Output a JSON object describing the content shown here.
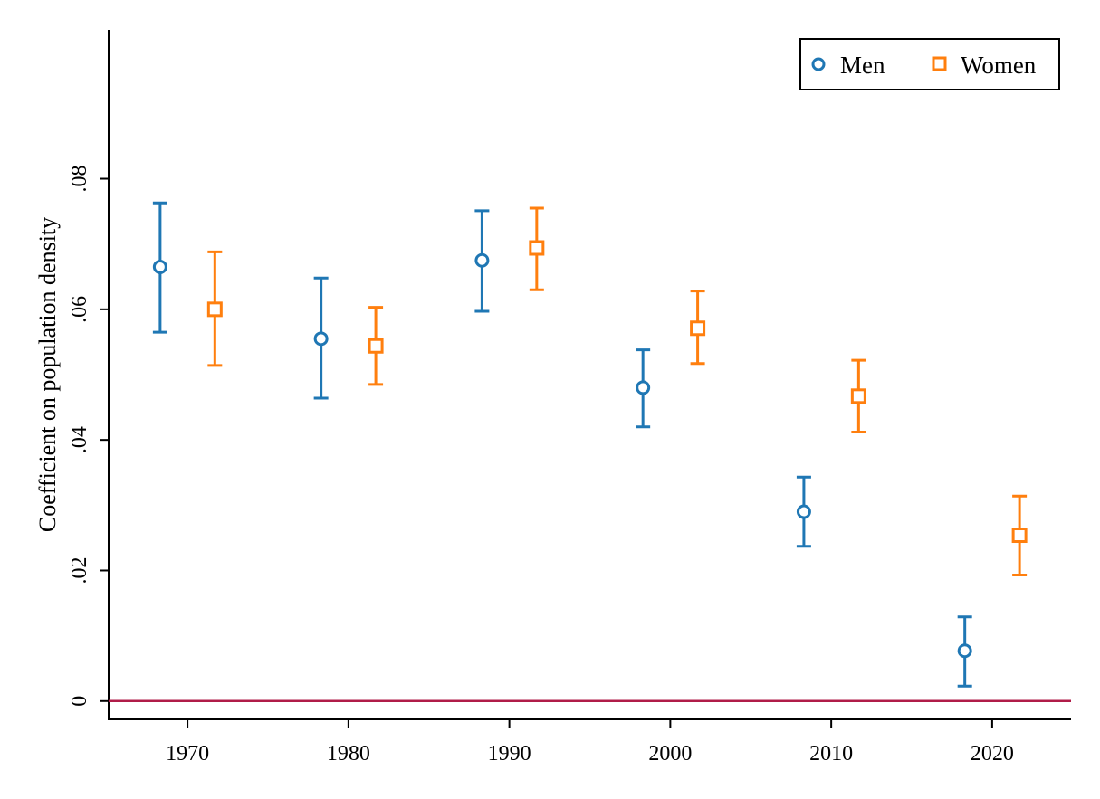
{
  "chart_data": {
    "type": "scatter",
    "subtype": "point-estimates-with-confidence-intervals",
    "ylabel": "Coefficient on population density",
    "xlabel": "",
    "x_ticks": [
      1970,
      1980,
      1990,
      2000,
      2010,
      2020
    ],
    "x_tick_labels": [
      "1970",
      "1980",
      "1990",
      "2000",
      "2010",
      "2020"
    ],
    "y_ticks": [
      0,
      0.02,
      0.04,
      0.06,
      0.08
    ],
    "y_tick_labels": [
      "0",
      ".02",
      ".04",
      ".06",
      ".08"
    ],
    "xlim": [
      1965.1,
      2024.9
    ],
    "ylim": [
      -0.0028,
      0.1028
    ],
    "reference_line": {
      "y": 0,
      "color": "#b01c48"
    },
    "legend": {
      "placement": "top-right",
      "entries": [
        "Men",
        "Women"
      ]
    },
    "grid": false,
    "series": [
      {
        "name": "Men",
        "marker": "circle",
        "color": "#1f77b4",
        "points": [
          {
            "x": 1968.3,
            "y": 0.0665,
            "lo": 0.0565,
            "hi": 0.0763
          },
          {
            "x": 1978.3,
            "y": 0.0555,
            "lo": 0.0464,
            "hi": 0.0648
          },
          {
            "x": 1988.3,
            "y": 0.0675,
            "lo": 0.0597,
            "hi": 0.0751
          },
          {
            "x": 1998.3,
            "y": 0.048,
            "lo": 0.042,
            "hi": 0.0538
          },
          {
            "x": 2008.3,
            "y": 0.029,
            "lo": 0.0237,
            "hi": 0.0343
          },
          {
            "x": 2018.3,
            "y": 0.0077,
            "lo": 0.0023,
            "hi": 0.0129
          }
        ]
      },
      {
        "name": "Women",
        "marker": "square",
        "color": "#ff7f0e",
        "points": [
          {
            "x": 1971.7,
            "y": 0.06,
            "lo": 0.0514,
            "hi": 0.0688
          },
          {
            "x": 1981.7,
            "y": 0.0544,
            "lo": 0.0485,
            "hi": 0.0603
          },
          {
            "x": 1991.7,
            "y": 0.0694,
            "lo": 0.063,
            "hi": 0.0755
          },
          {
            "x": 2001.7,
            "y": 0.0571,
            "lo": 0.0517,
            "hi": 0.0628
          },
          {
            "x": 2011.7,
            "y": 0.0467,
            "lo": 0.0412,
            "hi": 0.0522
          },
          {
            "x": 2021.7,
            "y": 0.0254,
            "lo": 0.0193,
            "hi": 0.0314
          }
        ]
      }
    ]
  }
}
